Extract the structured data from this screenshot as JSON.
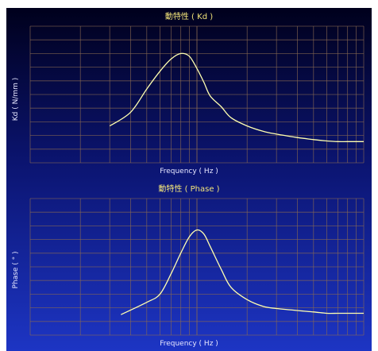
{
  "colors": {
    "background_top": "#00001c",
    "background_bottom": "#1d35c4",
    "grid": "#8a6a52",
    "curve": "#ffffb0",
    "title_text": "#f3e57a",
    "axis_text": "#e6e6ff"
  },
  "chart_data": [
    {
      "type": "line",
      "title": "動特性 ( Kd )",
      "xlabel": "Frequency ( Hz )",
      "ylabel": "Kd ( N/mm )",
      "x_scale": "log",
      "xlim": [
        1,
        100
      ],
      "ylim": [
        0,
        10
      ],
      "grid": true,
      "tick_labels_shown": false,
      "series": [
        {
          "x": [
            3,
            4,
            5,
            6,
            7,
            8,
            9,
            10,
            11,
            12,
            14,
            16,
            20,
            25,
            30,
            40,
            50,
            60,
            70,
            80,
            90,
            100
          ],
          "y": [
            2.7,
            3.7,
            5.4,
            6.7,
            7.6,
            8.0,
            7.8,
            6.9,
            5.9,
            4.9,
            4.1,
            3.3,
            2.7,
            2.3,
            2.1,
            1.85,
            1.7,
            1.6,
            1.55,
            1.55,
            1.55,
            1.55
          ]
        }
      ]
    },
    {
      "type": "line",
      "title": "動特性 ( Phase )",
      "xlabel": "Frequency ( Hz )",
      "ylabel": "Phase ( ° )",
      "x_scale": "log",
      "xlim": [
        1,
        100
      ],
      "ylim": [
        0,
        10
      ],
      "grid": true,
      "tick_labels_shown": false,
      "series": [
        {
          "x": [
            3.5,
            5,
            6,
            7,
            8,
            9,
            10,
            11,
            12,
            14,
            16,
            20,
            25,
            30,
            40,
            50,
            60,
            70,
            80,
            90,
            100
          ],
          "y": [
            1.5,
            2.4,
            3.0,
            4.5,
            6.0,
            7.2,
            7.7,
            7.4,
            6.5,
            4.8,
            3.5,
            2.6,
            2.1,
            1.95,
            1.8,
            1.7,
            1.6,
            1.6,
            1.6,
            1.6,
            1.6
          ]
        }
      ]
    }
  ]
}
